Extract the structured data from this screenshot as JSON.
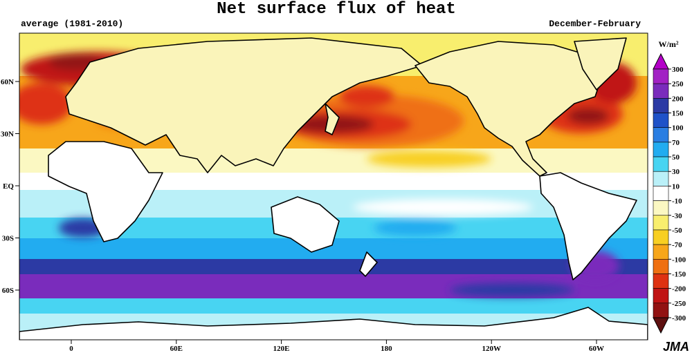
{
  "title": "Net surface flux of heat",
  "period": "average (1981-2010)",
  "season": "December-February",
  "lat_labels": [
    "60N",
    "30N",
    "EQ",
    "30S",
    "60S"
  ],
  "lon_labels": [
    "0",
    "60E",
    "120E",
    "180",
    "120W",
    "60W"
  ],
  "colorbar": {
    "unit": "W/m²",
    "levels": [
      300,
      250,
      200,
      150,
      100,
      70,
      50,
      30,
      10,
      -10,
      -30,
      -50,
      -70,
      -100,
      -150,
      -200,
      -250,
      -300
    ],
    "colors": [
      "#b400c8",
      "#a222c4",
      "#7a2cbc",
      "#2c3aa4",
      "#1f52c8",
      "#2a7ee2",
      "#22acf0",
      "#48d4f2",
      "#baf0f8",
      "#ffffff",
      "#fbf8c2",
      "#f8ee6e",
      "#f8cf22",
      "#f7a61a",
      "#ef7012",
      "#de3212",
      "#c01414",
      "#921212",
      "#5e1010"
    ]
  },
  "credit": "JMA"
}
